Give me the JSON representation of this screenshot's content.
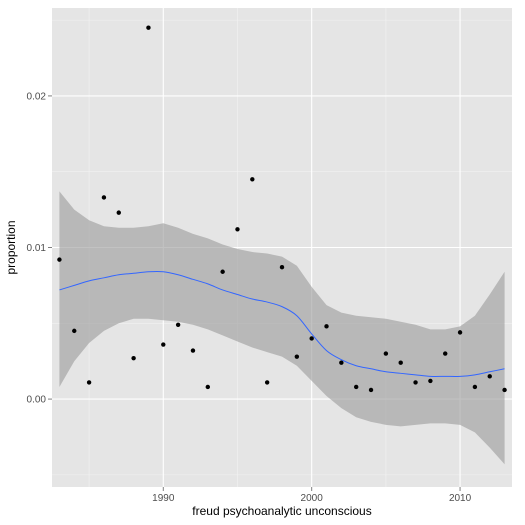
{
  "chart_data": {
    "type": "scatter",
    "title": "",
    "xlabel": "freud psychoanalytic unconscious",
    "ylabel": "proportion",
    "xlim": [
      1982.5,
      2013.5
    ],
    "ylim": [
      -0.0058,
      0.0258
    ],
    "x_ticks": [
      1990,
      2000,
      2010
    ],
    "x_tick_labels": [
      "1990",
      "2000",
      "2010"
    ],
    "y_ticks": [
      0,
      0.01,
      0.02
    ],
    "y_tick_labels": [
      "0.00",
      "0.01",
      "0.02"
    ],
    "grid": true,
    "legend": "none",
    "points": [
      {
        "x": 1983,
        "y": 0.0092
      },
      {
        "x": 1984,
        "y": 0.0045
      },
      {
        "x": 1985,
        "y": 0.0011
      },
      {
        "x": 1986,
        "y": 0.0133
      },
      {
        "x": 1987,
        "y": 0.0123
      },
      {
        "x": 1988,
        "y": 0.0027
      },
      {
        "x": 1989,
        "y": 0.0245
      },
      {
        "x": 1990,
        "y": 0.0036
      },
      {
        "x": 1991,
        "y": 0.0049
      },
      {
        "x": 1992,
        "y": 0.0032
      },
      {
        "x": 1993,
        "y": 0.0008
      },
      {
        "x": 1994,
        "y": 0.0084
      },
      {
        "x": 1995,
        "y": 0.0112
      },
      {
        "x": 1996,
        "y": 0.0145
      },
      {
        "x": 1997,
        "y": 0.0011
      },
      {
        "x": 1998,
        "y": 0.0087
      },
      {
        "x": 1999,
        "y": 0.0028
      },
      {
        "x": 2000,
        "y": 0.004
      },
      {
        "x": 2001,
        "y": 0.0048
      },
      {
        "x": 2002,
        "y": 0.0024
      },
      {
        "x": 2003,
        "y": 0.0008
      },
      {
        "x": 2004,
        "y": 0.0006
      },
      {
        "x": 2005,
        "y": 0.003
      },
      {
        "x": 2006,
        "y": 0.0024
      },
      {
        "x": 2007,
        "y": 0.0011
      },
      {
        "x": 2008,
        "y": 0.0012
      },
      {
        "x": 2009,
        "y": 0.003
      },
      {
        "x": 2010,
        "y": 0.0044
      },
      {
        "x": 2011,
        "y": 0.0008
      },
      {
        "x": 2012,
        "y": 0.0015
      },
      {
        "x": 2013,
        "y": 0.0006
      }
    ],
    "smooth": {
      "x": [
        1983,
        1984,
        1985,
        1986,
        1987,
        1988,
        1989,
        1990,
        1991,
        1992,
        1993,
        1994,
        1995,
        1996,
        1997,
        1998,
        1999,
        2000,
        2001,
        2002,
        2003,
        2004,
        2005,
        2006,
        2007,
        2008,
        2009,
        2010,
        2011,
        2012,
        2013
      ],
      "y": [
        0.0072,
        0.0075,
        0.0078,
        0.008,
        0.0082,
        0.0083,
        0.0084,
        0.0084,
        0.0082,
        0.0079,
        0.0076,
        0.0072,
        0.0069,
        0.0066,
        0.0064,
        0.0061,
        0.0055,
        0.0043,
        0.0032,
        0.0026,
        0.0022,
        0.002,
        0.0018,
        0.0017,
        0.0016,
        0.0015,
        0.0015,
        0.0015,
        0.0016,
        0.0018,
        0.002
      ],
      "lower": [
        0.0008,
        0.0025,
        0.0037,
        0.0045,
        0.005,
        0.0053,
        0.0053,
        0.0052,
        0.0051,
        0.0049,
        0.0046,
        0.0042,
        0.0038,
        0.0034,
        0.0031,
        0.0028,
        0.0022,
        0.0012,
        0.0002,
        -0.0006,
        -0.0012,
        -0.0015,
        -0.0017,
        -0.0018,
        -0.0017,
        -0.0016,
        -0.0016,
        -0.0017,
        -0.0022,
        -0.0032,
        -0.0043
      ],
      "upper": [
        0.0137,
        0.0125,
        0.0118,
        0.0114,
        0.0113,
        0.0113,
        0.0114,
        0.0116,
        0.0113,
        0.0109,
        0.0106,
        0.0102,
        0.0099,
        0.0097,
        0.0096,
        0.0094,
        0.0088,
        0.0074,
        0.0062,
        0.0057,
        0.0055,
        0.0054,
        0.0053,
        0.0051,
        0.0049,
        0.0046,
        0.0046,
        0.0048,
        0.0055,
        0.0069,
        0.0084
      ]
    },
    "colors": {
      "panel": "#e5e5e5",
      "grid_major": "#ffffff",
      "grid_minor": "#f2f2f2",
      "ribbon": "#999999",
      "line": "#3366ff",
      "point": "#000000",
      "tick": "#7f7f7f"
    }
  }
}
